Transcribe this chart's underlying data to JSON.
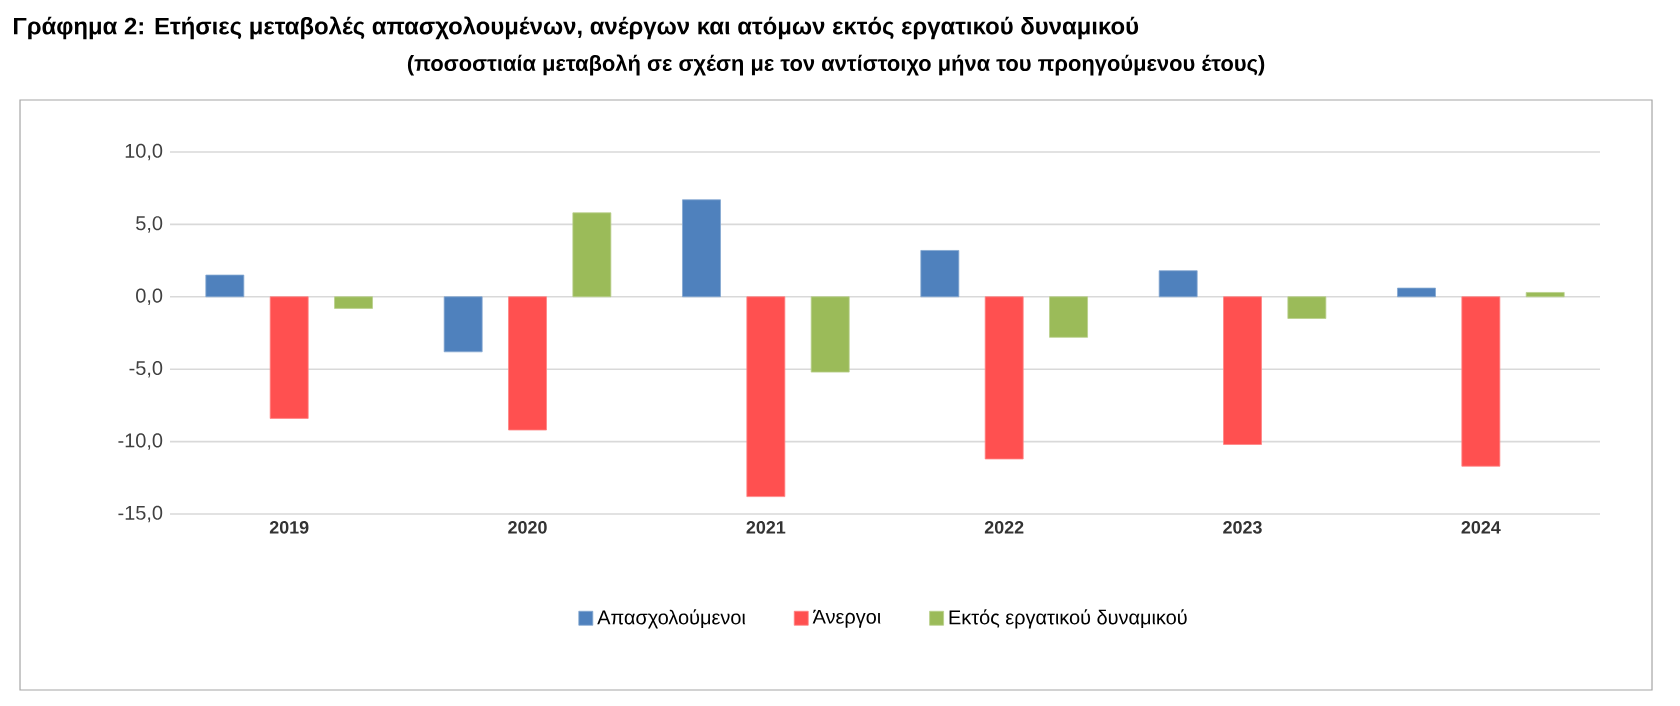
{
  "chart_data": {
    "type": "bar",
    "title": "Γράφημα 2: Ετήσιες μεταβολές απασχολουμένων, ανέργων και ατόμων εκτός εργατικού δυναμικού",
    "subtitle": "(ποσοστιαία μεταβολή σε σχέση με τον αντίστοιχο μήνα του προηγούμενου έτους)",
    "categories": [
      "2019",
      "2020",
      "2021",
      "2022",
      "2023",
      "2024"
    ],
    "series": [
      {
        "name": "Απασχολούμενοι",
        "color": "#4f81bd",
        "values": [
          1.5,
          -3.8,
          6.7,
          3.2,
          1.8,
          0.6
        ]
      },
      {
        "name": "Άνεργοι",
        "color": "#ff5050",
        "values": [
          -8.4,
          -9.2,
          -13.8,
          -11.2,
          -10.2,
          -11.7
        ]
      },
      {
        "name": "Εκτός εργατικού δυναμικού",
        "color": "#9bbb59",
        "values": [
          -0.8,
          5.8,
          -5.2,
          -2.8,
          -1.5,
          0.3
        ]
      }
    ],
    "ylim": [
      -15,
      10
    ],
    "yticks": [
      {
        "value": -15,
        "label": "-15,0"
      },
      {
        "value": -10,
        "label": "-10,0"
      },
      {
        "value": -5,
        "label": "-5,0"
      },
      {
        "value": 0,
        "label": "0,0"
      },
      {
        "value": 5,
        "label": "5,0"
      },
      {
        "value": 10,
        "label": "10,0"
      }
    ],
    "grid": "y",
    "legend": "bottom"
  }
}
